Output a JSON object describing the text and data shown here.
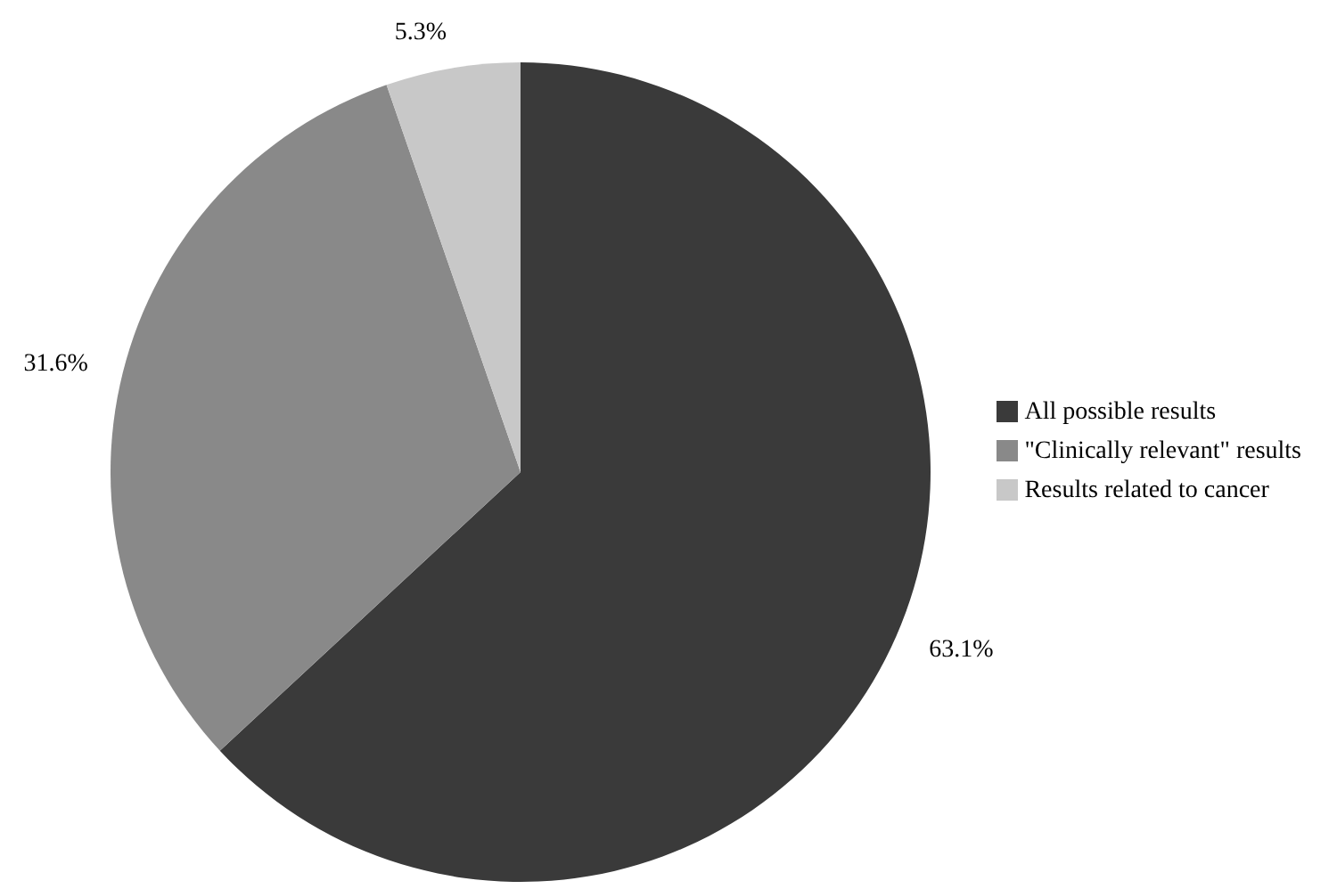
{
  "chart_data": {
    "type": "pie",
    "categories": [
      "All possible results",
      "\"Clinically relevant\" results",
      "Results related to cancer"
    ],
    "values": [
      63.1,
      31.6,
      5.3
    ],
    "colors": [
      "#3a3a3a",
      "#898989",
      "#c8c8c8"
    ],
    "value_labels": [
      "63.1%",
      "31.6%",
      "5.3%"
    ],
    "legend": "right"
  }
}
